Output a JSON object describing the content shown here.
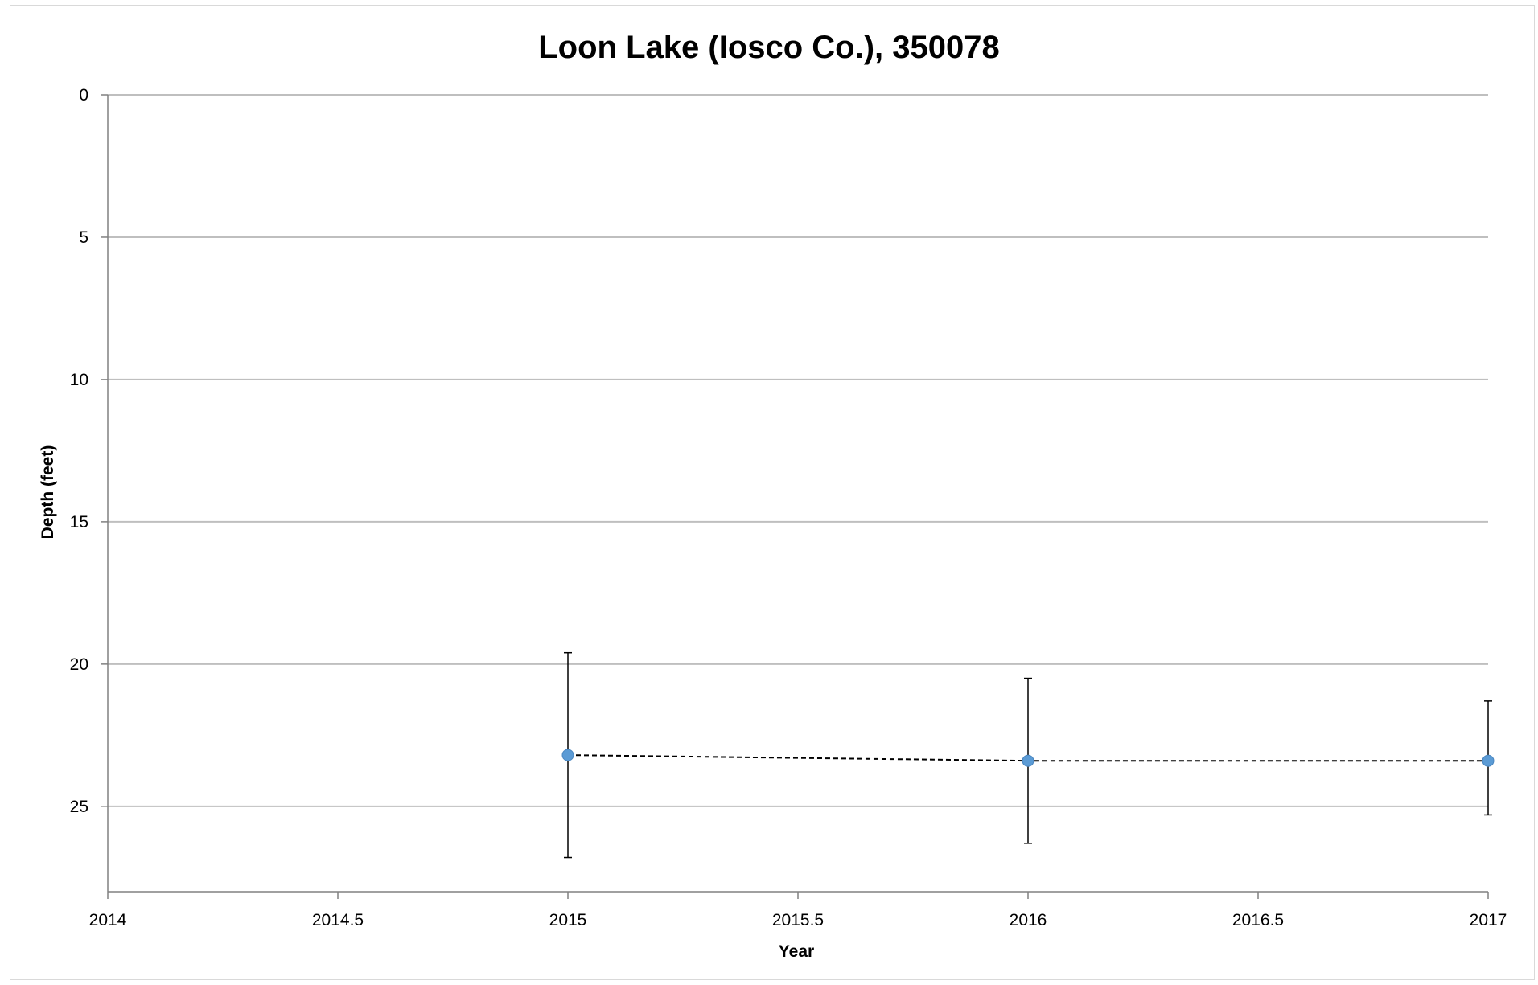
{
  "chart_data": {
    "type": "scatter",
    "title": "Loon Lake (Iosco Co.), 350078",
    "xlabel": "Year",
    "ylabel": "Depth (feet)",
    "xlim": [
      2014,
      2017
    ],
    "ylim": [
      0,
      28
    ],
    "y_inverted": true,
    "x_ticks": [
      "2014",
      "2014.5",
      "2015",
      "2015.5",
      "2016",
      "2016.5",
      "2017"
    ],
    "y_ticks": [
      "0",
      "5",
      "10",
      "15",
      "20",
      "25"
    ],
    "grid": "horizontal",
    "series": [
      {
        "points": [
          {
            "x": 2015,
            "y": 23.2,
            "err_low": 19.6,
            "err_high": 26.8
          },
          {
            "x": 2016,
            "y": 23.4,
            "err_low": 20.5,
            "err_high": 26.3
          },
          {
            "x": 2017,
            "y": 23.4,
            "err_low": 21.3,
            "err_high": 25.3
          }
        ],
        "marker_color": "#5b9bd5",
        "line_style": "dashed",
        "line_color": "#000000"
      }
    ]
  }
}
